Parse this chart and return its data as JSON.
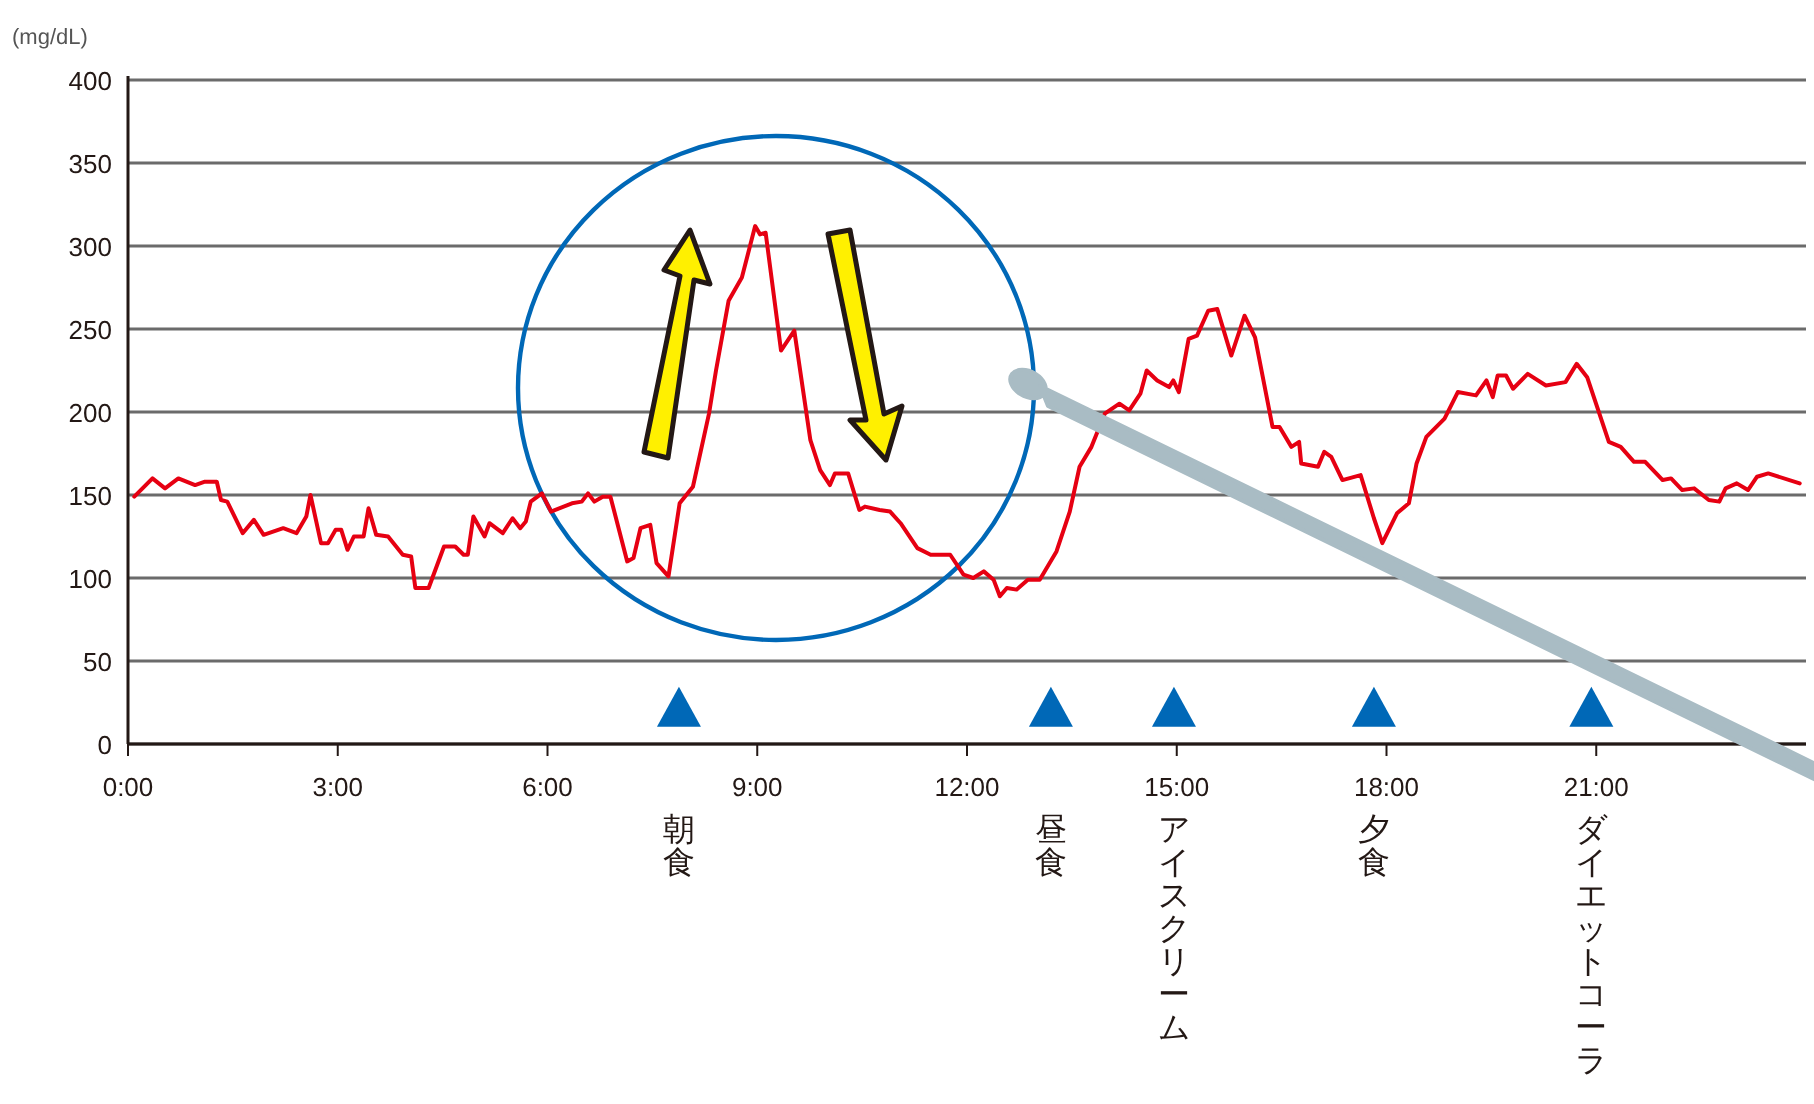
{
  "chart_data": {
    "type": "line",
    "ylabel": "(mg/dL)",
    "xlim": [
      0,
      24
    ],
    "ylim": [
      0,
      400
    ],
    "xticks": [
      {
        "value": 0,
        "label": "0:00"
      },
      {
        "value": 3,
        "label": "3:00"
      },
      {
        "value": 6,
        "label": "6:00"
      },
      {
        "value": 9,
        "label": "9:00"
      },
      {
        "value": 12,
        "label": "12:00"
      },
      {
        "value": 15,
        "label": "15:00"
      },
      {
        "value": 18,
        "label": "18:00"
      },
      {
        "value": 21,
        "label": "21:00"
      }
    ],
    "yticks": [
      0,
      50,
      100,
      150,
      200,
      250,
      300,
      350,
      400
    ],
    "grid": "y",
    "series": [
      {
        "type": "line",
        "color": "#e60012",
        "marker": "none",
        "x": [
          0.09,
          0.35,
          0.53,
          0.72,
          0.96,
          1.1,
          1.27,
          1.33,
          1.42,
          1.64,
          1.8,
          1.94,
          2.22,
          2.41,
          2.55,
          2.61,
          2.76,
          2.86,
          2.97,
          3.05,
          3.14,
          3.23,
          3.37,
          3.44,
          3.55,
          3.72,
          3.93,
          4.05,
          4.11,
          4.3,
          4.52,
          4.68,
          4.8,
          4.86,
          4.94,
          5.1,
          5.17,
          5.36,
          5.5,
          5.61,
          5.69,
          5.76,
          5.92,
          6.05,
          6.35,
          6.49,
          6.58,
          6.67,
          6.79,
          6.9,
          7.14,
          7.23,
          7.33,
          7.47,
          7.56,
          7.73,
          7.89,
          8.08,
          8.31,
          8.41,
          8.59,
          8.78,
          8.97,
          9.04,
          9.12,
          9.34,
          9.53,
          9.76,
          9.9,
          10.04,
          10.11,
          10.3,
          10.46,
          10.54,
          10.75,
          10.9,
          11.05,
          11.29,
          11.48,
          11.76,
          11.95,
          12.09,
          12.24,
          12.38,
          12.47,
          12.57,
          12.71,
          12.87,
          13.04,
          13.28,
          13.47,
          13.61,
          13.78,
          13.97,
          14.18,
          14.32,
          14.48,
          14.57,
          14.72,
          14.89,
          14.95,
          15.03,
          15.17,
          15.29,
          15.45,
          15.58,
          15.78,
          15.97,
          16.12,
          16.37,
          16.47,
          16.64,
          16.75,
          16.78,
          17.02,
          17.11,
          17.21,
          17.37,
          17.63,
          17.82,
          17.94,
          18.15,
          18.32,
          18.43,
          18.57,
          18.83,
          19.02,
          19.28,
          19.43,
          19.52,
          19.59,
          19.71,
          19.81,
          20.02,
          20.28,
          20.56,
          20.72,
          20.87,
          21.18,
          21.35,
          21.54,
          21.7,
          21.95,
          22.07,
          22.23,
          22.4,
          22.61,
          22.76,
          22.85,
          23.01,
          23.17,
          23.3,
          23.46,
          23.91
        ],
        "values": [
          149,
          160,
          154,
          160,
          156,
          158,
          158,
          147,
          146,
          127,
          135,
          126,
          130,
          127,
          137,
          150,
          121,
          121,
          129,
          129,
          117,
          125,
          125,
          142,
          126,
          125,
          114,
          113,
          94,
          94,
          119,
          119,
          114,
          114,
          137,
          125,
          133,
          127,
          136,
          130,
          134,
          146,
          151,
          140,
          145,
          146,
          151,
          146,
          149,
          149,
          110,
          112,
          130,
          132,
          109,
          101,
          145,
          155,
          199,
          225,
          267,
          281,
          312,
          307,
          308,
          237,
          249,
          183,
          165,
          156,
          163,
          163,
          141,
          143,
          141,
          140,
          133,
          118,
          114,
          114,
          102,
          100,
          104,
          99,
          89,
          94,
          93,
          99,
          99,
          116,
          140,
          167,
          179,
          199,
          205,
          201,
          211,
          225,
          219,
          215,
          219,
          212,
          244,
          246,
          261,
          262,
          234,
          258,
          245,
          191,
          191,
          179,
          182,
          169,
          167,
          176,
          173,
          159,
          162,
          136,
          121,
          139,
          145,
          169,
          185,
          196,
          212,
          210,
          219,
          209,
          222,
          222,
          214,
          223,
          216,
          218,
          229,
          221,
          182,
          179,
          170,
          170,
          159,
          160,
          153,
          154,
          147,
          146,
          154,
          157,
          153,
          161,
          163,
          157
        ]
      },
      {
        "type": "scatter",
        "color": "#0068b7",
        "marker": "triangle",
        "x": [
          7.88,
          13.2,
          14.96,
          17.82,
          20.93
        ],
        "values": [
          20,
          20,
          20,
          20,
          20
        ]
      }
    ],
    "annotations": [
      "朝食",
      "昼食",
      "アイスクリーム",
      "夕食",
      "ダイエットコーラ"
    ]
  }
}
